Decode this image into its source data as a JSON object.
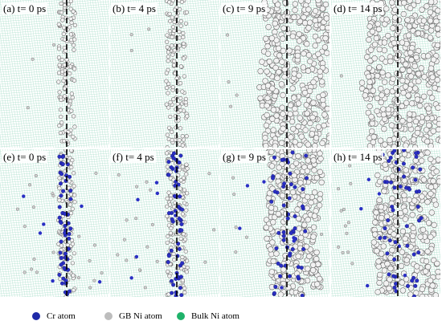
{
  "panels": [
    {
      "label": "(a)  t= 0 ps",
      "time_ps": 0,
      "row": "top",
      "cr": false,
      "spread": 0.08
    },
    {
      "label": "(b)  t= 4 ps",
      "time_ps": 4,
      "row": "top",
      "cr": false,
      "spread": 0.12
    },
    {
      "label": "(c)  t= 9 ps",
      "time_ps": 9,
      "row": "top",
      "cr": false,
      "spread": 0.6
    },
    {
      "label": "(d)  t= 14 ps",
      "time_ps": 14,
      "row": "top",
      "cr": false,
      "spread": 0.8
    },
    {
      "label": "(e)  t= 0 ps",
      "time_ps": 0,
      "row": "bottom",
      "cr": true,
      "spread": 0.08
    },
    {
      "label": "(f)  t= 4 ps",
      "time_ps": 4,
      "row": "bottom",
      "cr": true,
      "spread": 0.12
    },
    {
      "label": "(g)  t= 9 ps",
      "time_ps": 9,
      "row": "bottom",
      "cr": true,
      "spread": 0.45
    },
    {
      "label": "(h)  t= 14 ps",
      "time_ps": 14,
      "row": "bottom",
      "cr": true,
      "spread": 0.55
    }
  ],
  "legend": [
    {
      "label": "Cr atom",
      "color": "#1f2aa8"
    },
    {
      "label": "GB  Ni atom",
      "color": "#bdbdbd"
    },
    {
      "label": "Bulk Ni atom",
      "color": "#1fb26a"
    }
  ],
  "colors": {
    "bulk_lattice": "#9ad9c0",
    "gb_atom_fill": "#f2f2f2",
    "gb_atom_stroke": "#6a6a6a",
    "cr_atom": "#2a2fc4",
    "gb_line": "#000000"
  }
}
